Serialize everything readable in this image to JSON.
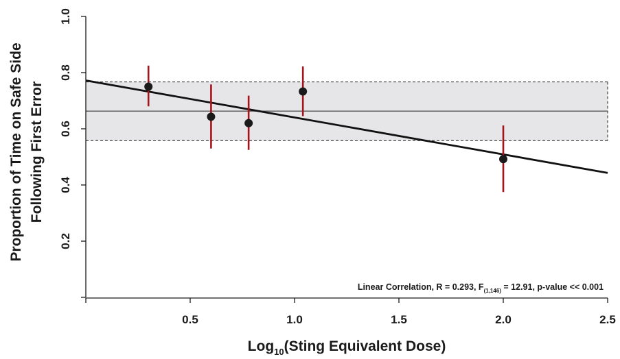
{
  "chart_data": {
    "type": "scatter",
    "title": "",
    "xlabel": "Log",
    "xlabel_sub": "10",
    "xlabel_suffix": "(Sting Equivalent Dose)",
    "ylabel_line1": "Proportion of Time on Safe Side",
    "ylabel_line2": "Following First Error",
    "xlim": [
      0.0,
      2.5
    ],
    "ylim": [
      0.0,
      1.0
    ],
    "x_ticks": [
      0.0,
      0.5,
      1.0,
      1.5,
      2.0,
      2.5
    ],
    "x_tick_labels": [
      "",
      "0.5",
      "1.0",
      "1.5",
      "2.0",
      "2.5"
    ],
    "y_ticks": [
      0.0,
      0.2,
      0.4,
      0.6,
      0.8,
      1.0
    ],
    "y_tick_labels": [
      "",
      "0.2",
      "0.4",
      "0.6",
      "0.8",
      "1.0"
    ],
    "grid": false,
    "points": [
      {
        "x": 0.3,
        "y": 0.75,
        "lower": 0.68,
        "upper": 0.825
      },
      {
        "x": 0.6,
        "y": 0.643,
        "lower": 0.53,
        "upper": 0.758
      },
      {
        "x": 0.78,
        "y": 0.62,
        "lower": 0.525,
        "upper": 0.718
      },
      {
        "x": 1.04,
        "y": 0.733,
        "lower": 0.645,
        "upper": 0.822
      },
      {
        "x": 2.0,
        "y": 0.492,
        "lower": 0.375,
        "upper": 0.612
      }
    ],
    "regression_line": {
      "x": [
        0.0,
        2.5
      ],
      "y": [
        0.772,
        0.443
      ]
    },
    "mean_line": 0.663,
    "band": [
      0.558,
      0.767
    ],
    "annotation": {
      "prefix": "Linear Correlation, R = 0.293, F",
      "sub": "(1,146)",
      "suffix": " = 12.91, p-value << 0.001"
    },
    "colors": {
      "point": "#1a1a1a",
      "error_bar": "#a3141c",
      "regression": "#111111",
      "mean_line": "#555555",
      "band_fill": "#e6e6e8",
      "band_border": "#444444"
    }
  }
}
